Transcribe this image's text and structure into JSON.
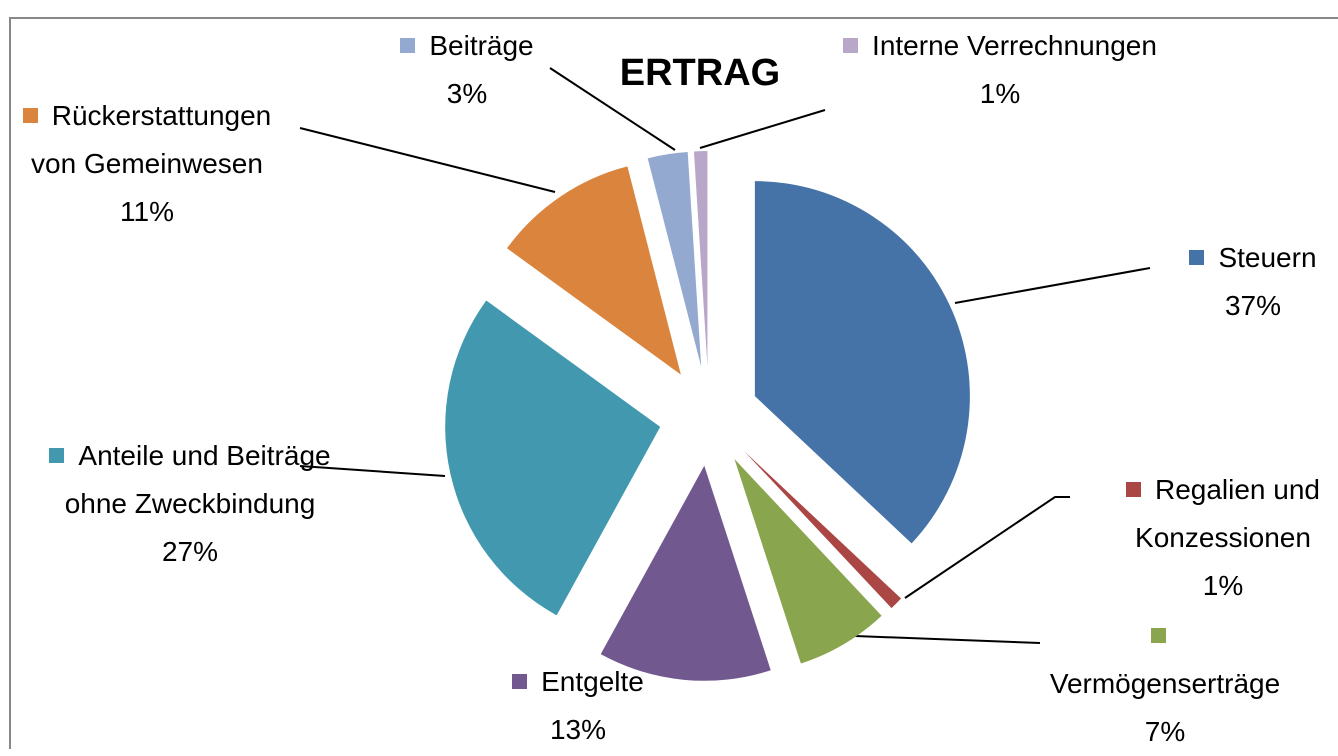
{
  "chart_data": {
    "type": "pie",
    "title": "ERTRAG",
    "categories": [
      "Steuern",
      "Regalien und Konzessionen",
      "Vermögenserträge",
      "Entgelte",
      "Anteile und Beiträge ohne Zweckbindung",
      "Rückerstattungen von Gemeinwesen",
      "Beiträge",
      "Interne Verrechnungen"
    ],
    "values": [
      37,
      1,
      7,
      13,
      27,
      11,
      3,
      1
    ],
    "value_labels": [
      "37%",
      "1%",
      "7%",
      "13%",
      "27%",
      "11%",
      "3%",
      "1%"
    ],
    "colors": [
      "#4572a7",
      "#aa4643",
      "#89a54e",
      "#71588f",
      "#4198af",
      "#db843d",
      "#93a9cf",
      "#b9a7c9"
    ]
  }
}
